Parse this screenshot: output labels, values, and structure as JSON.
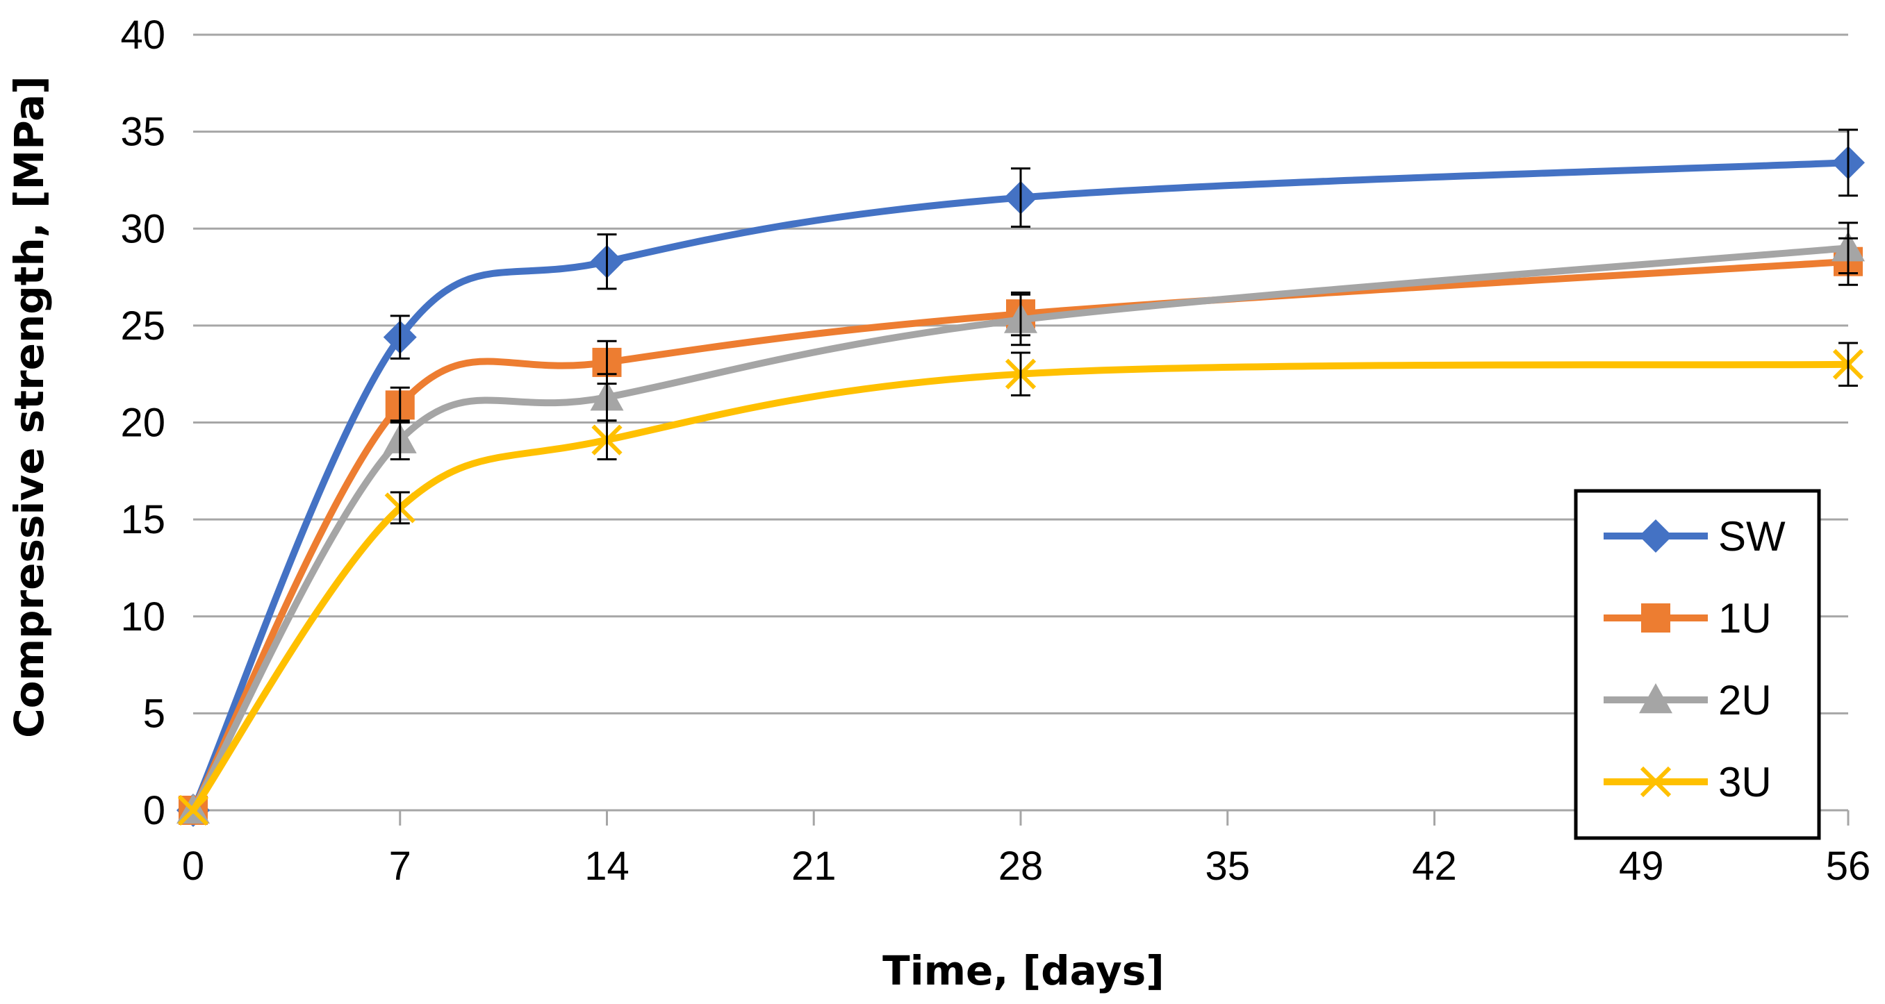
{
  "chart_data": {
    "type": "line",
    "title": "",
    "xlabel": "Time, [days]",
    "ylabel": "Compressive strength, [MPa]",
    "xlim": [
      0,
      56
    ],
    "ylim": [
      0,
      40
    ],
    "x_ticks": [
      0,
      7,
      14,
      21,
      28,
      35,
      42,
      49,
      56
    ],
    "y_ticks": [
      0,
      5,
      10,
      15,
      20,
      25,
      30,
      35,
      40
    ],
    "grid": "horizontal",
    "legend_position": "bottom-right",
    "x": [
      0,
      7,
      14,
      28,
      56
    ],
    "series": [
      {
        "name": "SW",
        "color": "#4472C4",
        "marker": "diamond",
        "values": [
          0,
          24.4,
          28.3,
          31.6,
          33.4
        ],
        "errors": [
          0,
          1.1,
          1.4,
          1.5,
          1.7
        ]
      },
      {
        "name": "1U",
        "color": "#ED7D31",
        "marker": "square",
        "values": [
          0,
          20.9,
          23.1,
          25.6,
          28.3
        ],
        "errors": [
          0,
          0.9,
          1.1,
          1.1,
          1.2
        ]
      },
      {
        "name": "2U",
        "color": "#A5A5A5",
        "marker": "triangle",
        "values": [
          0,
          19.1,
          21.3,
          25.3,
          29.0
        ],
        "errors": [
          0,
          1.0,
          1.2,
          1.3,
          1.3
        ]
      },
      {
        "name": "3U",
        "color": "#FFC000",
        "marker": "x",
        "values": [
          0,
          15.6,
          19.1,
          22.5,
          23.0
        ],
        "errors": [
          0,
          0.8,
          1.0,
          1.1,
          1.1
        ]
      }
    ]
  }
}
